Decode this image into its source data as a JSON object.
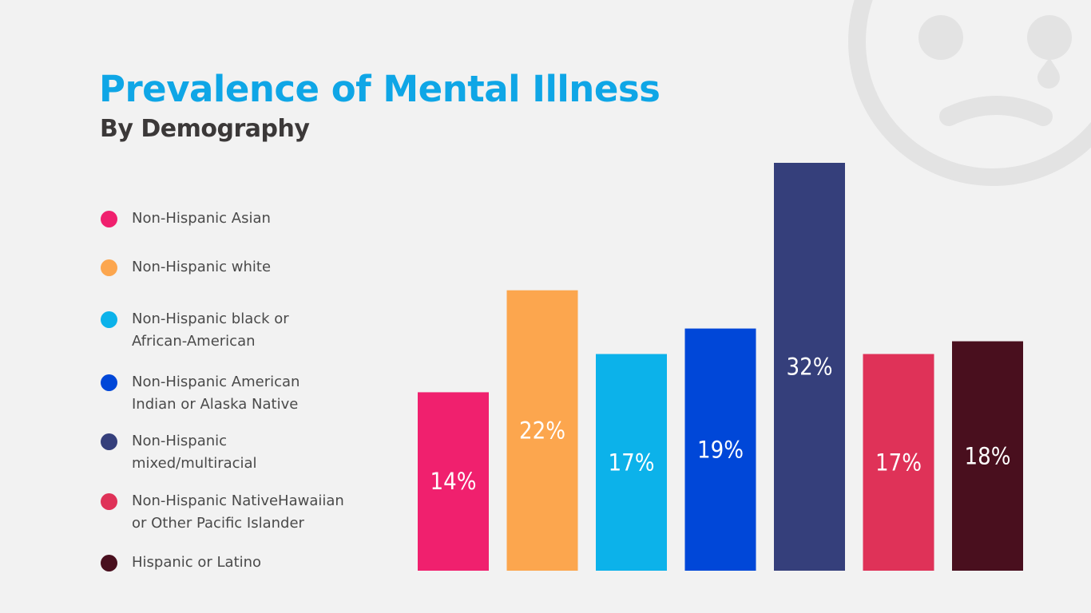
{
  "page": {
    "title": "Prevalence of Mental Illness",
    "subtitle": "By Demography"
  },
  "decoration": {
    "icon": "sad-face-icon",
    "color": "#e3e3e3"
  },
  "chart_data": {
    "type": "bar",
    "title": "Prevalence of Mental Illness",
    "subtitle": "By Demography",
    "xlabel": "",
    "ylabel": "",
    "ylim": [
      0,
      32
    ],
    "grid": false,
    "legend_position": "left",
    "categories": [
      "Non-Hispanic Asian",
      "Non-Hispanic white",
      "Non-Hispanic black or African-American",
      "Non-Hispanic American Indian or Alaska Native",
      "Non-Hispanic mixed/multiracial",
      "Non-Hispanic NativeHawaiian or Other Pacific Islander",
      "Hispanic or Latino"
    ],
    "legend_lines": [
      [
        "Non-Hispanic Asian"
      ],
      [
        "Non-Hispanic white"
      ],
      [
        "Non-Hispanic black or",
        "African-American"
      ],
      [
        "Non-Hispanic American",
        "Indian or Alaska Native"
      ],
      [
        "Non-Hispanic",
        "mixed/multiracial"
      ],
      [
        "Non-Hispanic NativeHawaiian",
        "or Other Pacific Islander"
      ],
      [
        "Hispanic or Latino"
      ]
    ],
    "values": [
      14,
      22,
      17,
      19,
      32,
      17,
      18
    ],
    "value_labels": [
      "14%",
      "22%",
      "17%",
      "19%",
      "32%",
      "17%",
      "18%"
    ],
    "colors": [
      "#f0206e",
      "#fca64e",
      "#0cb2ea",
      "#0047d8",
      "#353f7b",
      "#df3258",
      "#490f1e"
    ]
  }
}
